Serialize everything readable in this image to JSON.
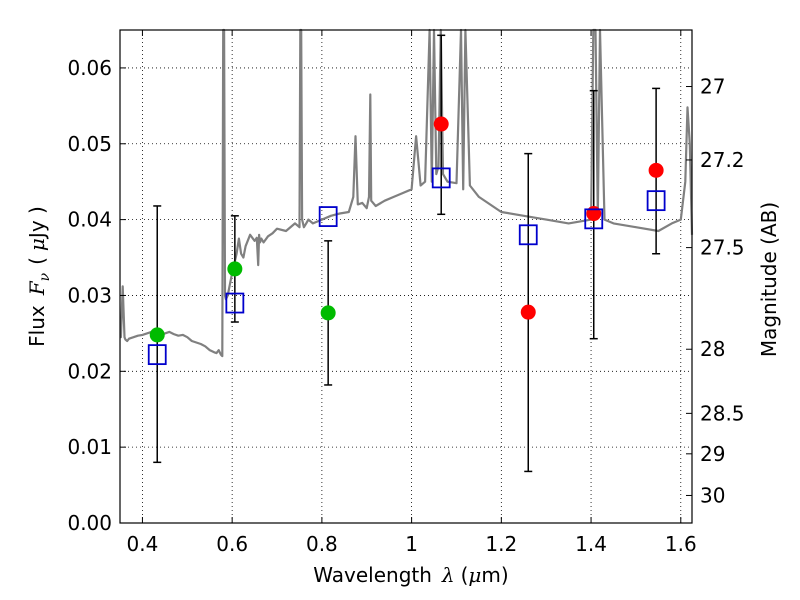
{
  "chart_data": {
    "type": "scatter",
    "xlabel": {
      "prefix": "Wavelength",
      "symbol": "λ",
      "unit_open": "(",
      "unit_mu": "μ",
      "unit_rest": "m)"
    },
    "ylabel": {
      "prefix": "Flux",
      "symbol": "F",
      "sub": "ν",
      "unit_open": "(",
      "unit_mu": "μ",
      "unit_rest": "Jy )"
    },
    "y2label": "Magnitude (AB)",
    "xlim": [
      0.35,
      1.625
    ],
    "ylim": [
      0.0,
      0.065
    ],
    "xticks": [
      0.4,
      0.6,
      0.8,
      1.0,
      1.2,
      1.4,
      1.6
    ],
    "xtick_labels": [
      "0.4",
      "0.6",
      "0.8",
      "1",
      "1.2",
      "1.4",
      "1.6"
    ],
    "yticks": [
      0.0,
      0.01,
      0.02,
      0.03,
      0.04,
      0.05,
      0.06
    ],
    "ytick_labels": [
      "0.00",
      "0.01",
      "0.02",
      "0.03",
      "0.04",
      "0.05",
      "0.06"
    ],
    "y2ticks": [
      27,
      27.2,
      27.5,
      28,
      28.5,
      29,
      30
    ],
    "y2tick_labels": [
      "27",
      "27.2",
      "27.5",
      "28",
      "28.5",
      "29",
      "30"
    ],
    "grid": true,
    "colors": {
      "model": "#808080",
      "green": "#00bb00",
      "red": "#ff0000",
      "blue": "#0000cc",
      "errorbar": "#000000"
    },
    "model_spectrum": {
      "x": [
        0.35,
        0.352,
        0.356,
        0.36,
        0.362,
        0.366,
        0.37,
        0.38,
        0.39,
        0.4,
        0.41,
        0.42,
        0.43,
        0.44,
        0.45,
        0.46,
        0.47,
        0.48,
        0.49,
        0.5,
        0.51,
        0.52,
        0.53,
        0.54,
        0.55,
        0.56,
        0.565,
        0.57,
        0.575,
        0.578,
        0.58,
        0.582,
        0.584,
        0.586,
        0.59,
        0.6,
        0.61,
        0.615,
        0.62,
        0.625,
        0.63,
        0.64,
        0.65,
        0.655,
        0.658,
        0.66,
        0.662,
        0.665,
        0.67,
        0.68,
        0.69,
        0.7,
        0.72,
        0.74,
        0.75,
        0.752,
        0.754,
        0.756,
        0.758,
        0.76,
        0.765,
        0.77,
        0.78,
        0.8,
        0.82,
        0.84,
        0.86,
        0.87,
        0.875,
        0.88,
        0.89,
        0.9,
        0.905,
        0.908,
        0.91,
        0.92,
        0.94,
        0.96,
        0.98,
        1.0,
        1.01,
        1.02,
        1.03,
        1.04,
        1.045,
        1.05,
        1.055,
        1.06,
        1.065,
        1.07,
        1.08,
        1.1,
        1.11,
        1.115,
        1.12,
        1.13,
        1.15,
        1.2,
        1.25,
        1.3,
        1.35,
        1.4,
        1.405,
        1.41,
        1.415,
        1.42,
        1.43,
        1.45,
        1.5,
        1.55,
        1.58,
        1.6,
        1.61,
        1.615,
        1.62,
        1.625
      ],
      "y": [
        0.0245,
        0.0245,
        0.0312,
        0.0245,
        0.0242,
        0.024,
        0.0243,
        0.0245,
        0.0247,
        0.0248,
        0.025,
        0.0252,
        0.0249,
        0.0248,
        0.025,
        0.0252,
        0.0249,
        0.0247,
        0.0248,
        0.0245,
        0.024,
        0.0238,
        0.0236,
        0.0233,
        0.0228,
        0.0225,
        0.0224,
        0.0228,
        0.0222,
        0.022,
        0.065,
        0.065,
        0.03,
        0.0295,
        0.03,
        0.033,
        0.0355,
        0.0375,
        0.0355,
        0.035,
        0.0365,
        0.038,
        0.0372,
        0.0376,
        0.034,
        0.038,
        0.037,
        0.0375,
        0.037,
        0.0378,
        0.0382,
        0.0388,
        0.0385,
        0.0395,
        0.039,
        0.065,
        0.065,
        0.04,
        0.0395,
        0.039,
        0.0395,
        0.04,
        0.0395,
        0.04,
        0.0405,
        0.0408,
        0.041,
        0.043,
        0.051,
        0.042,
        0.0422,
        0.0415,
        0.043,
        0.0565,
        0.0425,
        0.0418,
        0.0425,
        0.043,
        0.0435,
        0.044,
        0.051,
        0.0445,
        0.045,
        0.065,
        0.045,
        0.065,
        0.046,
        0.047,
        0.065,
        0.046,
        0.045,
        0.0448,
        0.065,
        0.044,
        0.065,
        0.0445,
        0.043,
        0.041,
        0.0405,
        0.04,
        0.0395,
        0.04,
        0.065,
        0.065,
        0.0405,
        0.065,
        0.04,
        0.0395,
        0.039,
        0.0385,
        0.0395,
        0.04,
        0.045,
        0.0548,
        0.05,
        0.038
      ]
    },
    "series": [
      {
        "marker": "circle",
        "color": "green",
        "points": [
          [
            0.433,
            0.0248
          ],
          [
            0.606,
            0.0335
          ],
          [
            0.814,
            0.0277
          ]
        ]
      },
      {
        "marker": "circle",
        "color": "red",
        "points": [
          [
            1.066,
            0.0526
          ],
          [
            1.26,
            0.0278
          ],
          [
            1.406,
            0.0408
          ],
          [
            1.545,
            0.0465
          ]
        ]
      },
      {
        "marker": "square",
        "color": "blue",
        "points": [
          [
            0.433,
            0.0222
          ],
          [
            0.606,
            0.029
          ],
          [
            0.814,
            0.0404
          ],
          [
            1.066,
            0.0455
          ],
          [
            1.26,
            0.038
          ],
          [
            1.406,
            0.0401
          ],
          [
            1.545,
            0.0425
          ]
        ]
      }
    ],
    "errorbars": [
      {
        "x": 0.433,
        "ylo": 0.008,
        "yhi": 0.0418
      },
      {
        "x": 0.606,
        "ylo": 0.0265,
        "yhi": 0.0405
      },
      {
        "x": 0.814,
        "ylo": 0.0182,
        "yhi": 0.0372
      },
      {
        "x": 1.066,
        "ylo": 0.0407,
        "yhi": 0.0643
      },
      {
        "x": 1.26,
        "ylo": 0.0068,
        "yhi": 0.0487
      },
      {
        "x": 1.406,
        "ylo": 0.0243,
        "yhi": 0.057
      },
      {
        "x": 1.545,
        "ylo": 0.0355,
        "yhi": 0.0573
      }
    ]
  }
}
